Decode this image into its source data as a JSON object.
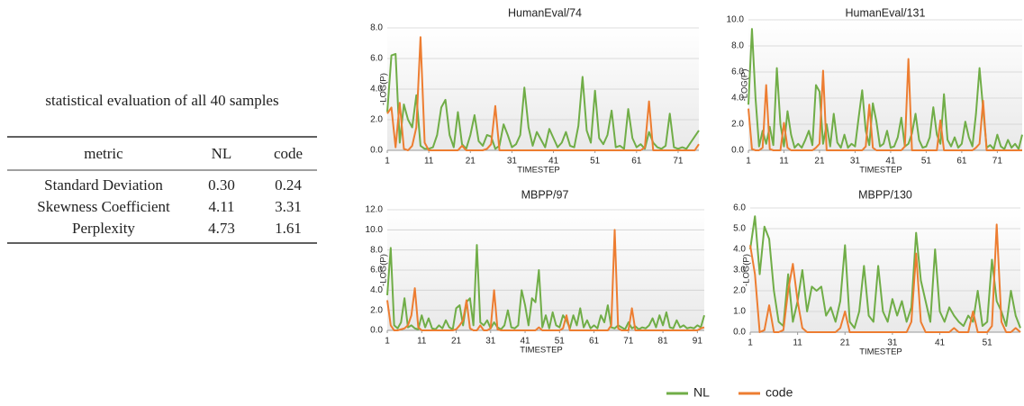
{
  "table": {
    "caption": "statistical evaluation of all 40 samples",
    "columns": [
      "metric",
      "NL",
      "code"
    ],
    "rows": [
      [
        "Standard Deviation",
        "0.30",
        "0.24"
      ],
      [
        "Skewness Coefficient",
        "4.11",
        "3.31"
      ],
      [
        "Perplexity",
        "4.73",
        "1.61"
      ]
    ]
  },
  "chart_data": [
    {
      "type": "line",
      "title": "HumanEval/74",
      "x_label": "TIMESTEP",
      "y_label": "-LOG(P)",
      "x": [
        1,
        2,
        3,
        4,
        5,
        6,
        7,
        8,
        9,
        10,
        11,
        12,
        13,
        14,
        15,
        16,
        17,
        18,
        19,
        20,
        21,
        22,
        23,
        24,
        25,
        26,
        27,
        28,
        29,
        30,
        31,
        32,
        33,
        34,
        35,
        36,
        37,
        38,
        39,
        40,
        41,
        42,
        43,
        44,
        45,
        46,
        47,
        48,
        49,
        50,
        51,
        52,
        53,
        54,
        55,
        56,
        57,
        58,
        59,
        60,
        61,
        62,
        63,
        64,
        65,
        66,
        67,
        68,
        69,
        70,
        71,
        72,
        73,
        74,
        75,
        76
      ],
      "series": [
        {
          "name": "NL",
          "color": "#70ad47",
          "values": [
            2.5,
            6.2,
            6.3,
            0.5,
            3.0,
            2.0,
            1.5,
            3.6,
            0.3,
            0.1,
            0.1,
            0.2,
            1.0,
            2.8,
            3.3,
            1.0,
            0.2,
            2.5,
            0.4,
            0.1,
            1.0,
            2.3,
            0.6,
            0.3,
            1.0,
            0.9,
            0.1,
            0.3,
            1.7,
            1.0,
            0.2,
            0.4,
            1.0,
            4.1,
            1.5,
            0.3,
            1.2,
            0.7,
            0.2,
            1.4,
            0.8,
            0.2,
            0.5,
            1.2,
            0.3,
            0.2,
            1.6,
            4.8,
            1.3,
            0.5,
            3.9,
            0.8,
            0.4,
            1.0,
            2.6,
            0.2,
            0.3,
            0.1,
            2.7,
            0.8,
            0.2,
            0.4,
            0.1,
            1.2,
            0.5,
            0.2,
            0.1,
            0.3,
            2.4,
            0.2,
            0.1,
            0.2,
            0.1,
            0.5,
            0.9,
            1.3
          ]
        },
        {
          "name": "code",
          "color": "#ed7d31",
          "values": [
            2.4,
            2.8,
            0.2,
            3.1,
            0.1,
            0.0,
            0.3,
            1.5,
            7.4,
            0.5,
            0.0,
            0.0,
            0.0,
            0.0,
            0.0,
            0.0,
            0.0,
            0.0,
            0.3,
            0.0,
            0.0,
            0.0,
            0.0,
            0.0,
            0.1,
            0.4,
            2.9,
            0.0,
            0.0,
            0.0,
            0.0,
            0.0,
            0.0,
            0.0,
            0.0,
            0.0,
            0.0,
            0.0,
            0.0,
            0.0,
            0.0,
            0.0,
            0.0,
            0.0,
            0.0,
            0.0,
            0.0,
            0.0,
            0.0,
            0.0,
            0.0,
            0.0,
            0.0,
            0.0,
            0.0,
            0.0,
            0.0,
            0.0,
            0.0,
            0.0,
            0.0,
            0.0,
            0.2,
            3.2,
            0.0,
            0.0,
            0.0,
            0.0,
            0.0,
            0.0,
            0.0,
            0.0,
            0.0,
            0.0,
            0.0,
            0.4
          ]
        }
      ],
      "xlim": [
        1,
        76
      ],
      "xticks": [
        1,
        11,
        21,
        31,
        41,
        51,
        61,
        71
      ],
      "ylim": [
        0,
        8
      ],
      "yticks": [
        {
          "value": 0,
          "label": "0.0"
        },
        {
          "value": 2,
          "label": "2.0"
        },
        {
          "value": 4,
          "label": "4.0"
        },
        {
          "value": 6,
          "label": "6.0"
        },
        {
          "value": 8,
          "label": "8.0"
        }
      ],
      "grid": true
    },
    {
      "type": "line",
      "title": "HumanEval/131",
      "x_label": "TIMESTEP",
      "y_label": "-LOG(P)",
      "x": [
        1,
        2,
        3,
        4,
        5,
        6,
        7,
        8,
        9,
        10,
        11,
        12,
        13,
        14,
        15,
        16,
        17,
        18,
        19,
        20,
        21,
        22,
        23,
        24,
        25,
        26,
        27,
        28,
        29,
        30,
        31,
        32,
        33,
        34,
        35,
        36,
        37,
        38,
        39,
        40,
        41,
        42,
        43,
        44,
        45,
        46,
        47,
        48,
        49,
        50,
        51,
        52,
        53,
        54,
        55,
        56,
        57,
        58,
        59,
        60,
        61,
        62,
        63,
        64,
        65,
        66,
        67,
        68,
        69,
        70,
        71,
        72,
        73,
        74,
        75,
        76,
        77,
        78
      ],
      "series": [
        {
          "name": "NL",
          "color": "#70ad47",
          "values": [
            3.5,
            9.3,
            4.0,
            0.3,
            1.5,
            0.5,
            1.8,
            0.4,
            6.3,
            2.0,
            0.3,
            3.0,
            1.2,
            0.2,
            0.5,
            0.2,
            0.8,
            1.5,
            0.4,
            5.0,
            4.5,
            0.5,
            2.0,
            0.3,
            2.8,
            0.6,
            0.2,
            1.2,
            0.2,
            0.5,
            0.3,
            2.5,
            4.6,
            1.5,
            0.4,
            3.6,
            2.2,
            0.3,
            0.5,
            1.5,
            0.2,
            0.3,
            1.0,
            2.5,
            0.3,
            0.5,
            1.3,
            2.8,
            0.8,
            0.2,
            0.3,
            1.0,
            3.3,
            1.2,
            0.5,
            4.3,
            0.8,
            0.3,
            1.0,
            0.2,
            0.5,
            2.2,
            1.0,
            0.3,
            2.8,
            6.3,
            3.2,
            0.2,
            0.4,
            0.1,
            1.2,
            0.3,
            0.1,
            0.8,
            0.2,
            0.5,
            0.1,
            1.2
          ]
        },
        {
          "name": "code",
          "color": "#ed7d31",
          "values": [
            3.2,
            0.1,
            0.0,
            0.0,
            0.2,
            5.0,
            0.1,
            0.0,
            0.0,
            0.0,
            2.1,
            0.2,
            0.0,
            0.0,
            0.0,
            0.0,
            0.0,
            0.0,
            0.0,
            0.2,
            0.5,
            6.1,
            0.0,
            0.0,
            0.0,
            0.0,
            0.0,
            0.0,
            0.0,
            0.0,
            0.0,
            0.0,
            0.0,
            0.3,
            3.5,
            0.2,
            0.0,
            0.0,
            0.0,
            0.0,
            0.0,
            0.0,
            0.0,
            0.0,
            0.3,
            7.0,
            0.0,
            0.0,
            0.0,
            0.0,
            0.0,
            0.0,
            0.0,
            0.0,
            2.3,
            0.0,
            0.0,
            0.0,
            0.0,
            0.0,
            0.0,
            0.0,
            0.0,
            0.0,
            0.2,
            0.5,
            3.8,
            0.0,
            0.0,
            0.0,
            0.0,
            0.0,
            0.0,
            0.0,
            0.0,
            0.0,
            0.0,
            0.0
          ]
        }
      ],
      "xlim": [
        1,
        78
      ],
      "xticks": [
        1,
        11,
        21,
        31,
        41,
        51,
        61,
        71
      ],
      "ylim": [
        0,
        10
      ],
      "yticks": [
        {
          "value": 0,
          "label": "0.0"
        },
        {
          "value": 2,
          "label": "2.0"
        },
        {
          "value": 4,
          "label": "4.0"
        },
        {
          "value": 6,
          "label": "6.0"
        },
        {
          "value": 8,
          "label": "8.0"
        },
        {
          "value": 10,
          "label": "10.0"
        }
      ],
      "grid": true
    },
    {
      "type": "line",
      "title": "MBPP/97",
      "x_label": "TIMESTEP",
      "y_label": "-LOG(P)",
      "x": [
        1,
        2,
        3,
        4,
        5,
        6,
        7,
        8,
        9,
        10,
        11,
        12,
        13,
        14,
        15,
        16,
        17,
        18,
        19,
        20,
        21,
        22,
        23,
        24,
        25,
        26,
        27,
        28,
        29,
        30,
        31,
        32,
        33,
        34,
        35,
        36,
        37,
        38,
        39,
        40,
        41,
        42,
        43,
        44,
        45,
        46,
        47,
        48,
        49,
        50,
        51,
        52,
        53,
        54,
        55,
        56,
        57,
        58,
        59,
        60,
        61,
        62,
        63,
        64,
        65,
        66,
        67,
        68,
        69,
        70,
        71,
        72,
        73,
        74,
        75,
        76,
        77,
        78,
        79,
        80,
        81,
        82,
        83,
        84,
        85,
        86,
        87,
        88,
        89,
        90,
        91,
        92,
        93
      ],
      "series": [
        {
          "name": "NL",
          "color": "#70ad47",
          "values": [
            3.5,
            8.2,
            0.5,
            0.2,
            0.8,
            3.2,
            0.3,
            0.5,
            0.2,
            0.1,
            1.5,
            0.3,
            1.2,
            0.2,
            0.1,
            0.5,
            0.2,
            1.0,
            0.3,
            0.1,
            2.2,
            2.5,
            0.5,
            2.8,
            3.2,
            0.5,
            8.5,
            0.8,
            0.5,
            1.0,
            0.2,
            0.8,
            0.3,
            0.1,
            0.5,
            2.0,
            0.3,
            0.2,
            0.5,
            4.0,
            2.5,
            0.5,
            3.2,
            2.8,
            6.0,
            0.3,
            1.5,
            0.2,
            1.8,
            0.5,
            0.3,
            1.5,
            1.0,
            0.2,
            1.5,
            0.5,
            2.2,
            0.3,
            1.0,
            0.2,
            0.5,
            0.2,
            1.5,
            0.8,
            2.5,
            0.3,
            0.2,
            0.5,
            0.3,
            0.1,
            0.8,
            0.2,
            0.4,
            0.1,
            0.3,
            0.2,
            0.5,
            1.2,
            0.3,
            1.5,
            0.5,
            1.8,
            0.3,
            0.2,
            1.0,
            0.3,
            0.5,
            0.2,
            0.3,
            0.2,
            0.5,
            0.3,
            1.5
          ]
        },
        {
          "name": "code",
          "color": "#ed7d31",
          "values": [
            3.0,
            0.5,
            0.0,
            0.0,
            0.1,
            0.2,
            0.5,
            1.5,
            4.2,
            0.3,
            0.0,
            0.0,
            0.0,
            0.0,
            0.0,
            0.0,
            0.0,
            0.0,
            0.0,
            0.0,
            0.1,
            0.5,
            1.0,
            3.0,
            0.2,
            0.0,
            0.0,
            0.5,
            0.0,
            0.0,
            0.2,
            4.0,
            0.1,
            0.0,
            0.0,
            0.0,
            0.0,
            0.0,
            0.0,
            0.0,
            0.0,
            0.0,
            0.0,
            0.0,
            0.3,
            0.0,
            0.0,
            0.0,
            0.0,
            0.0,
            0.0,
            0.2,
            1.5,
            0.0,
            0.0,
            0.0,
            0.0,
            0.0,
            0.0,
            0.0,
            0.0,
            0.0,
            0.0,
            0.0,
            0.0,
            0.5,
            10.0,
            0.2,
            0.0,
            0.0,
            0.0,
            2.2,
            0.0,
            0.0,
            0.0,
            0.0,
            0.0,
            0.0,
            0.0,
            0.0,
            0.0,
            0.0,
            0.0,
            0.0,
            0.0,
            0.0,
            0.0,
            0.0,
            0.0,
            0.0,
            0.0,
            0.2,
            0.3
          ]
        }
      ],
      "xlim": [
        1,
        93
      ],
      "xticks": [
        1,
        11,
        21,
        31,
        41,
        51,
        61,
        71,
        81,
        91
      ],
      "ylim": [
        0,
        12
      ],
      "yticks": [
        {
          "value": 0,
          "label": "0.0"
        },
        {
          "value": 2,
          "label": "2.0"
        },
        {
          "value": 4,
          "label": "4.0"
        },
        {
          "value": 6,
          "label": "6.0"
        },
        {
          "value": 8,
          "label": "8.0"
        },
        {
          "value": 10,
          "label": "10.0"
        },
        {
          "value": 12,
          "label": "12.0"
        }
      ],
      "grid": true
    },
    {
      "type": "line",
      "title": "MBPP/130",
      "x_label": "TIMESTEP",
      "y_label": "-LOG(P)",
      "x": [
        1,
        2,
        3,
        4,
        5,
        6,
        7,
        8,
        9,
        10,
        11,
        12,
        13,
        14,
        15,
        16,
        17,
        18,
        19,
        20,
        21,
        22,
        23,
        24,
        25,
        26,
        27,
        28,
        29,
        30,
        31,
        32,
        33,
        34,
        35,
        36,
        37,
        38,
        39,
        40,
        41,
        42,
        43,
        44,
        45,
        46,
        47,
        48,
        49,
        50,
        51,
        52,
        53,
        54,
        55,
        56,
        57,
        58
      ],
      "series": [
        {
          "name": "NL",
          "color": "#70ad47",
          "values": [
            4.0,
            5.6,
            2.8,
            5.1,
            4.5,
            2.0,
            0.5,
            0.3,
            2.8,
            0.5,
            1.5,
            3.0,
            1.0,
            2.2,
            2.0,
            2.2,
            0.8,
            1.2,
            0.5,
            1.5,
            4.2,
            0.5,
            0.2,
            1.0,
            3.2,
            0.8,
            0.5,
            3.2,
            1.0,
            0.5,
            1.6,
            0.8,
            1.5,
            0.5,
            1.2,
            4.8,
            2.5,
            1.5,
            0.5,
            4.0,
            1.0,
            0.5,
            1.2,
            0.8,
            0.5,
            0.3,
            0.8,
            0.5,
            2.0,
            0.3,
            0.5,
            3.5,
            1.5,
            1.0,
            0.3,
            2.0,
            0.8,
            0.2
          ]
        },
        {
          "name": "code",
          "color": "#ed7d31",
          "values": [
            4.2,
            2.8,
            0.0,
            0.1,
            1.3,
            0.0,
            0.0,
            0.1,
            2.0,
            3.3,
            1.5,
            0.2,
            0.0,
            0.0,
            0.0,
            0.0,
            0.0,
            0.0,
            0.0,
            0.2,
            1.0,
            0.0,
            0.0,
            0.0,
            0.0,
            0.0,
            0.0,
            0.0,
            0.0,
            0.0,
            0.0,
            0.0,
            0.0,
            0.0,
            0.5,
            3.8,
            0.5,
            0.0,
            0.0,
            0.0,
            0.0,
            0.0,
            0.0,
            0.2,
            0.0,
            0.0,
            0.0,
            1.0,
            0.0,
            0.0,
            0.0,
            0.3,
            5.2,
            0.5,
            0.0,
            0.0,
            0.2,
            0.0
          ]
        }
      ],
      "xlim": [
        1,
        58
      ],
      "xticks": [
        1,
        11,
        21,
        31,
        41,
        51
      ],
      "ylim": [
        0,
        6
      ],
      "yticks": [
        {
          "value": 0,
          "label": "0.0"
        },
        {
          "value": 1,
          "label": "1.0"
        },
        {
          "value": 2,
          "label": "2.0"
        },
        {
          "value": 3,
          "label": "3.0"
        },
        {
          "value": 4,
          "label": "4.0"
        },
        {
          "value": 5,
          "label": "5.0"
        },
        {
          "value": 6,
          "label": "6.0"
        }
      ],
      "grid": true
    }
  ]
}
